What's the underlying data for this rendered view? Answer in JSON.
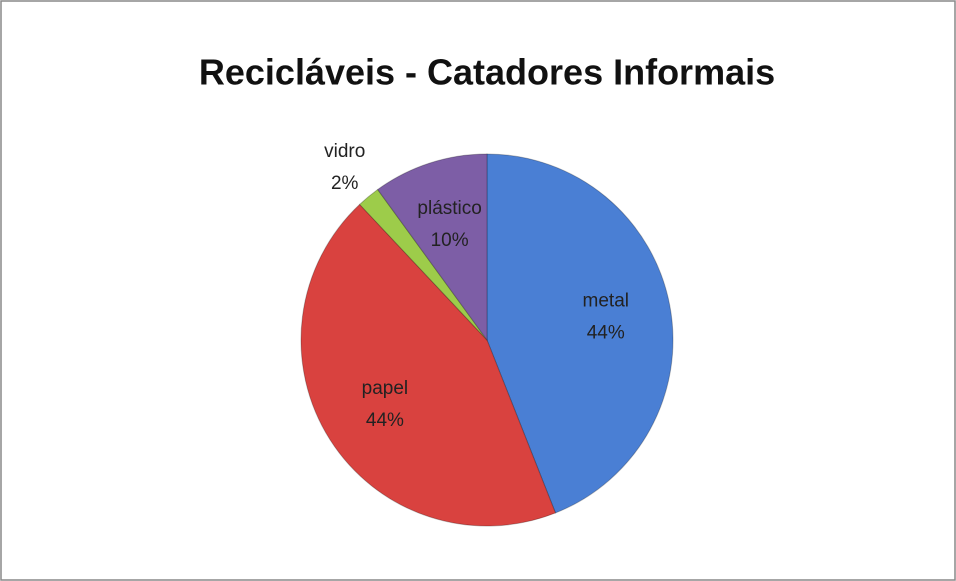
{
  "chart_data": {
    "type": "pie",
    "title": "Recicláveis - Catadores Informais",
    "categories": [
      "metal",
      "papel",
      "vidro",
      "plástico"
    ],
    "values": [
      44,
      44,
      2,
      10
    ],
    "value_labels": [
      "44%",
      "44%",
      "2%",
      "10%"
    ],
    "colors": [
      "#4a7fd4",
      "#d9423f",
      "#9dcc4a",
      "#7d5ea6"
    ]
  }
}
